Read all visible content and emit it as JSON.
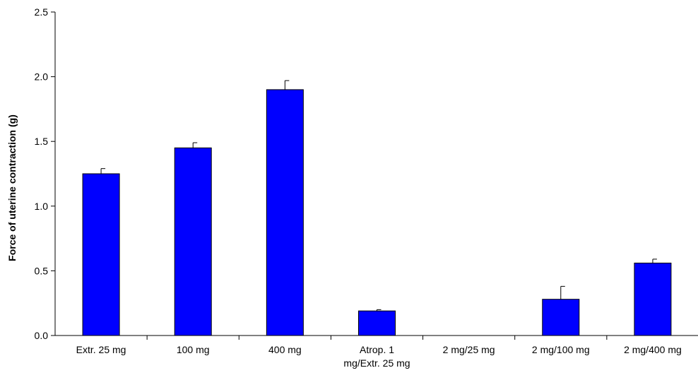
{
  "chart_data": {
    "type": "bar",
    "title": "",
    "xlabel": "",
    "ylabel": "Force of uterine contraction (g)",
    "ylim": [
      0,
      2.5
    ],
    "yticks": [
      "0.0",
      "0.5",
      "1.0",
      "1.5",
      "2.0",
      "2.5"
    ],
    "grid": false,
    "legend": "none",
    "bar_color": "#0000FF",
    "categories": [
      [
        "Extr. 25 mg"
      ],
      [
        "100 mg"
      ],
      [
        "400 mg"
      ],
      [
        "Atrop. 1",
        "mg/Extr. 25 mg"
      ],
      [
        "2 mg/25 mg"
      ],
      [
        "2 mg/100 mg"
      ],
      [
        "2 mg/400 mg"
      ]
    ],
    "values": [
      1.25,
      1.45,
      1.9,
      0.19,
      0.0,
      0.28,
      0.56
    ],
    "error_upper": [
      0.04,
      0.04,
      0.07,
      0.01,
      0.0,
      0.1,
      0.03
    ]
  }
}
